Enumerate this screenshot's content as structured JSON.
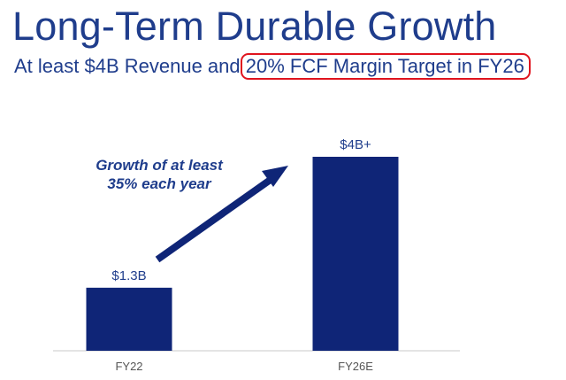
{
  "slide": {
    "title": "Long-Term Durable Growth",
    "subtitle_prefix": "At least $4B Revenue and",
    "subtitle_highlight": "20% FCF Margin Target in FY26",
    "highlight_color": "#e0141e"
  },
  "chart_data": {
    "type": "bar",
    "title": "",
    "xlabel": "",
    "ylabel": "",
    "categories": [
      "FY22",
      "FY26E"
    ],
    "values": [
      1.3,
      4.0
    ],
    "data_labels": [
      "$1.3B",
      "$4B+"
    ],
    "unit": "$B",
    "ylim": [
      0,
      4.0
    ],
    "grid": false,
    "legend": "none",
    "bar_color": "#0f2577",
    "annotation": {
      "text_line1": "Growth of at least",
      "text_line2": "35% each year",
      "arrow": "up-right"
    }
  }
}
